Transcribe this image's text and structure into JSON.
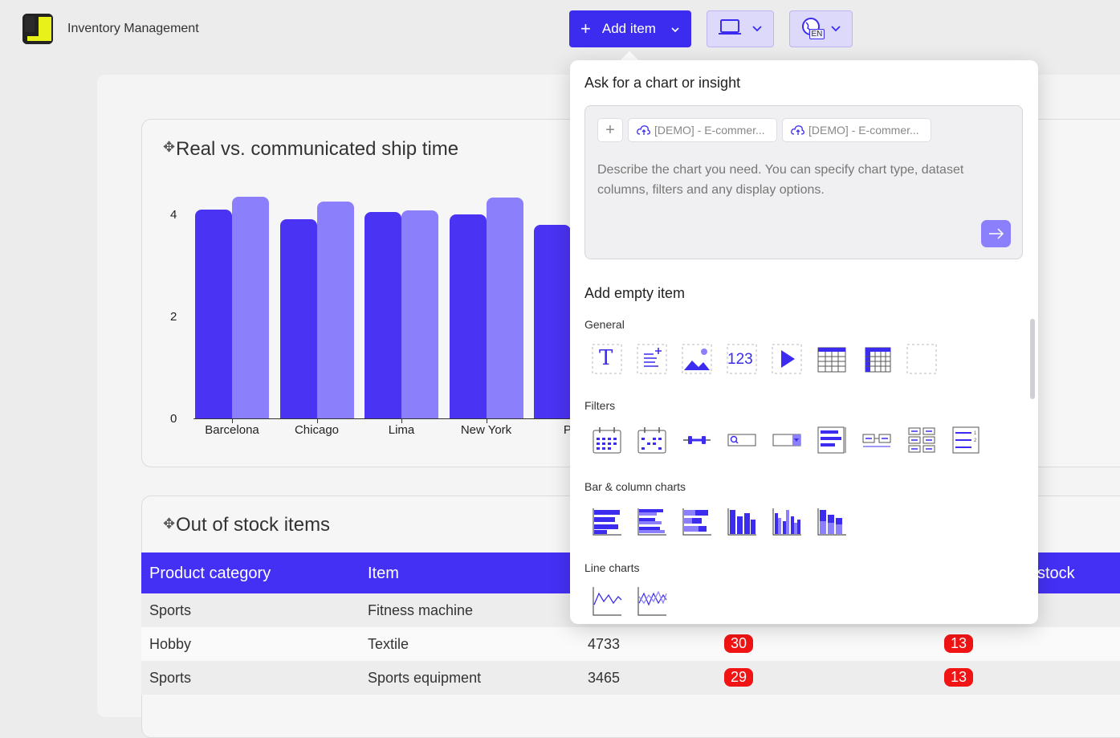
{
  "app": {
    "title": "Inventory Management"
  },
  "toolbar": {
    "add_item_label": "Add item",
    "lang_badge": "EN"
  },
  "chart1": {
    "title": "Real vs. communicated ship time",
    "y_ticks": [
      "4",
      "2",
      "0"
    ],
    "categories": [
      "Barcelona",
      "Chicago",
      "Lima",
      "New York",
      "Pa"
    ]
  },
  "chart_data": {
    "type": "bar",
    "title": "Real vs. communicated ship time",
    "categories": [
      "Barcelona",
      "Chicago",
      "Lima",
      "New York",
      "Pa"
    ],
    "series": [
      {
        "values": [
          4.1,
          3.9,
          4.05,
          4.0,
          3.8
        ],
        "color": "#4a33f2"
      },
      {
        "values": [
          4.35,
          4.25,
          4.08,
          4.33,
          null
        ],
        "color": "#8b7ffb"
      }
    ],
    "ylim": [
      0,
      4.5
    ],
    "y_ticks": [
      0,
      2,
      4
    ],
    "grid": false
  },
  "table": {
    "title": "Out of stock items",
    "headers": [
      "Product category",
      "Item",
      "stock"
    ],
    "rows": [
      {
        "category": "Sports",
        "item": "Fitness machine",
        "value": "",
        "badge1": "",
        "badge2": ""
      },
      {
        "category": "Hobby",
        "item": "Textile",
        "value": "4733",
        "badge1": "30",
        "badge2": "13"
      },
      {
        "category": "Sports",
        "item": "Sports equipment",
        "value": "3465",
        "badge1": "29",
        "badge2": "13"
      }
    ]
  },
  "panel": {
    "ask_heading": "Ask for a chart or insight",
    "chip_plus": "+",
    "chips": [
      "[DEMO] - E-commer...",
      "[DEMO] - E-commer..."
    ],
    "placeholder": "Describe the chart you need. You can specify chart type, dataset columns, filters and any display options.",
    "empty_heading": "Add empty item",
    "sections": {
      "general": "General",
      "filters": "Filters",
      "bar": "Bar & column charts",
      "line": "Line charts"
    },
    "icon_text_T": "T",
    "icon_text_num": "123"
  },
  "colors": {
    "accent": "#3b2cf0",
    "accent_light": "#8b7ffb",
    "badge_red": "#f11414"
  }
}
